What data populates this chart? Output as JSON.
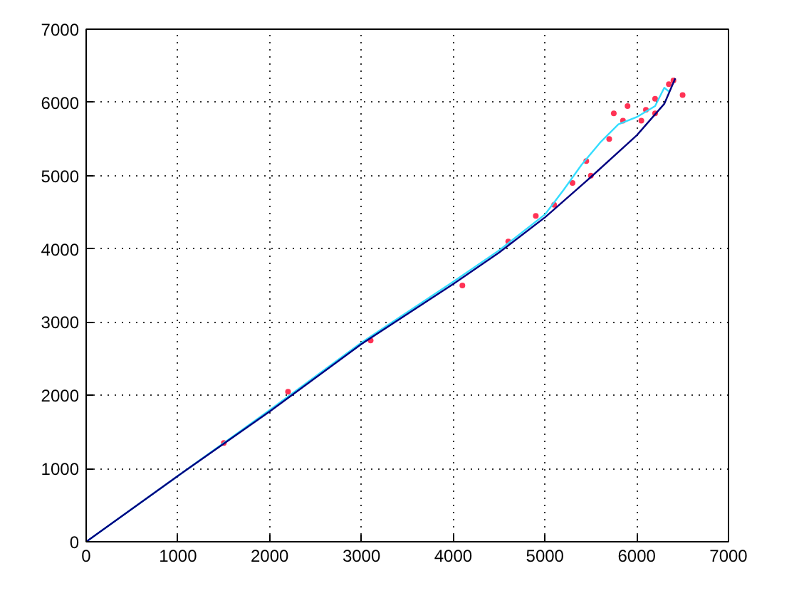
{
  "chart_data": {
    "type": "line",
    "xlim": [
      0,
      7000
    ],
    "ylim": [
      0,
      7000
    ],
    "xticks": [
      0,
      1000,
      2000,
      3000,
      4000,
      5000,
      6000,
      7000
    ],
    "yticks": [
      0,
      1000,
      2000,
      3000,
      4000,
      5000,
      6000,
      7000
    ],
    "grid": true,
    "line_style": "solid",
    "series": [
      {
        "type": "scatter",
        "color": "#ff3355",
        "x": [
          1500,
          2200,
          3100,
          4100,
          4600,
          4900,
          5100,
          5300,
          5450,
          5500,
          5700,
          5750,
          5850,
          5900,
          6050,
          6100,
          6200,
          6200,
          6350,
          6400,
          6500
        ],
        "values": [
          1350,
          2050,
          2750,
          3500,
          4100,
          4450,
          4600,
          4900,
          5200,
          5000,
          5500,
          5850,
          5750,
          5950,
          5750,
          5900,
          6050,
          5850,
          6250,
          6300,
          6100
        ]
      },
      {
        "type": "line",
        "color": "#33ddff",
        "x": [
          0,
          1000,
          2000,
          3000,
          4000,
          4500,
          5000,
          5200,
          5400,
          5600,
          5800,
          6000,
          6200,
          6300,
          6350
        ],
        "values": [
          0,
          900,
          1800,
          2720,
          3550,
          3980,
          4470,
          4800,
          5150,
          5450,
          5700,
          5800,
          5950,
          6200,
          6150
        ]
      },
      {
        "color": "#000080",
        "x": [
          0,
          1000,
          2000,
          3000,
          4000,
          4500,
          5000,
          5500,
          6000,
          6300,
          6420
        ],
        "values": [
          0,
          900,
          1780,
          2700,
          3520,
          3950,
          4430,
          4980,
          5550,
          5980,
          6330
        ]
      }
    ]
  }
}
